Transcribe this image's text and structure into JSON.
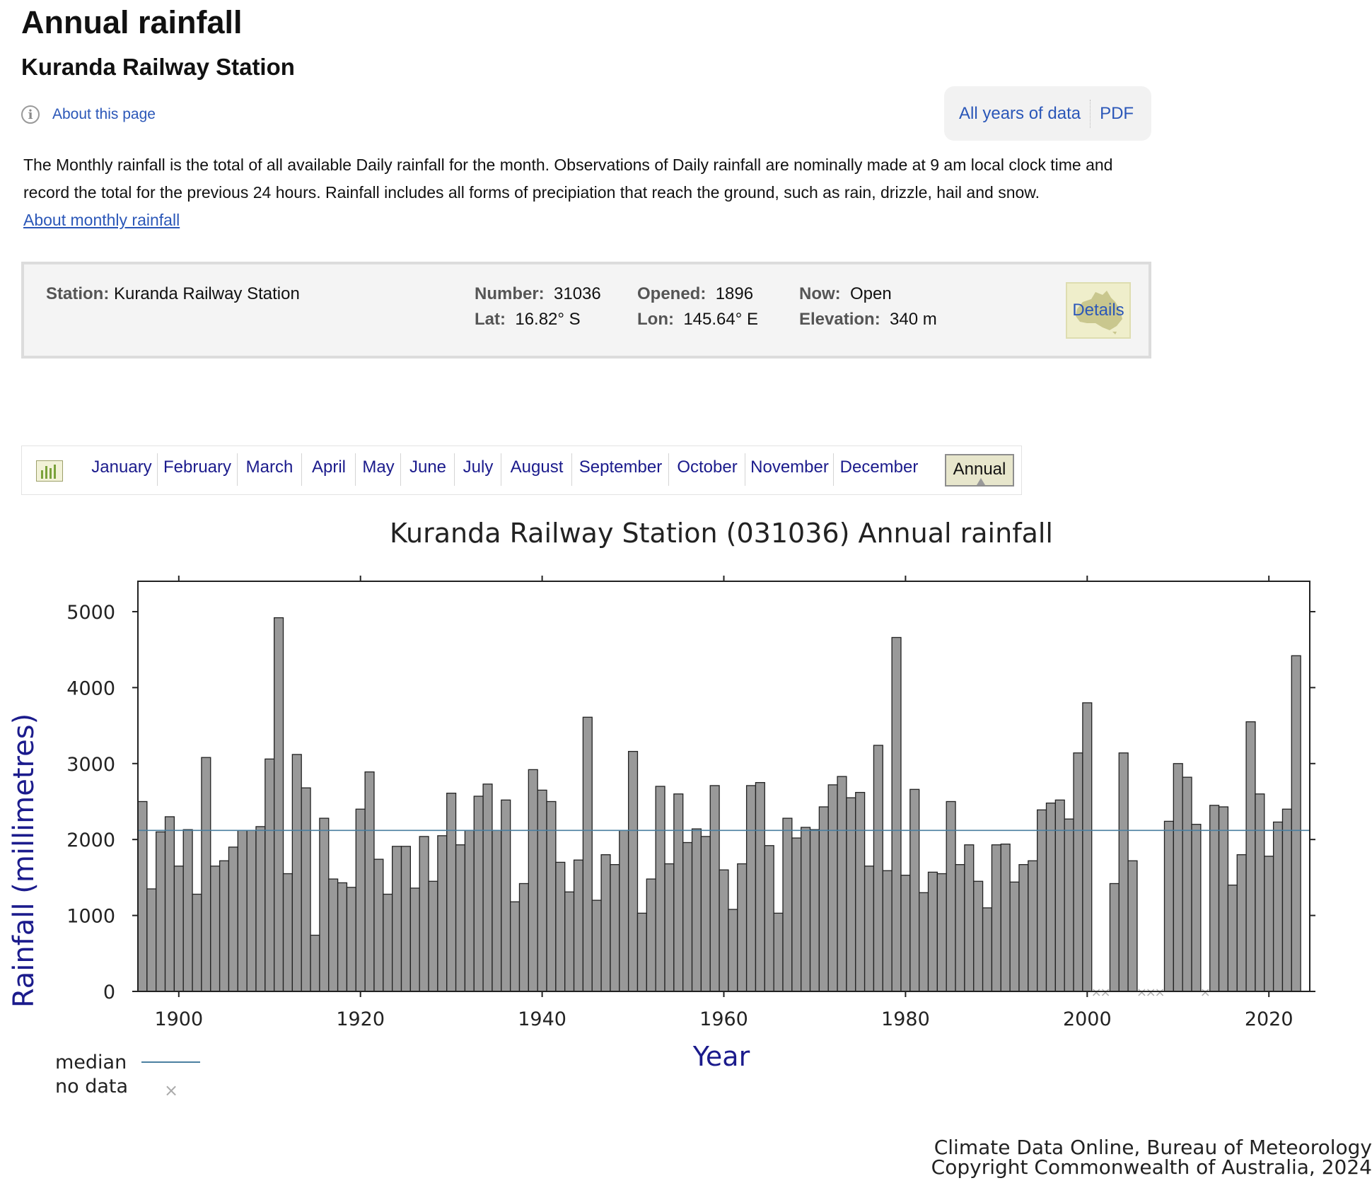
{
  "page": {
    "title": "Annual rainfall",
    "subtitle": "Kuranda Railway Station",
    "about_link": "About this page",
    "actions": [
      "All years of data",
      "PDF"
    ],
    "intro": "The Monthly rainfall is the total of all available Daily rainfall for the month. Observations of Daily rainfall are nominally made at 9 am local clock time and record the total for the previous 24 hours. Rainfall includes all forms of precipiation that reach the ground, such as rain, drizzle, hail and snow.",
    "intro_link": "About monthly rainfall"
  },
  "station": {
    "station_label": "Station:",
    "station_value": "Kuranda Railway Station",
    "number_label": "Number:",
    "number_value": "31036",
    "opened_label": "Opened:",
    "opened_value": "1896",
    "now_label": "Now:",
    "now_value": "Open",
    "lat_label": "Lat:",
    "lat_value": "16.82° S",
    "lon_label": "Lon:",
    "lon_value": "145.64° E",
    "elevation_label": "Elevation:",
    "elevation_value": "340 m",
    "details_button": "Details"
  },
  "tabs": {
    "months": [
      "January",
      "February",
      "March",
      "April",
      "May",
      "June",
      "July",
      "August",
      "September",
      "October",
      "November",
      "December"
    ],
    "selected": "Annual"
  },
  "chart_data": {
    "type": "bar",
    "title": "Kuranda Railway Station (031036) Annual rainfall",
    "xlabel": "Year",
    "ylabel": "Rainfall (millimetres)",
    "xlim": [
      1895.5,
      2024.5
    ],
    "ylim": [
      0,
      5400
    ],
    "x_ticks": [
      1900,
      1920,
      1940,
      1960,
      1980,
      2000,
      2020
    ],
    "y_ticks": [
      0,
      1000,
      2000,
      3000,
      4000,
      5000
    ],
    "median": 2120,
    "legend": {
      "median": "median",
      "no_data": "no data"
    },
    "bar_color": "#999999",
    "median_color": "#4a7fa0",
    "x": [
      1896,
      1897,
      1898,
      1899,
      1900,
      1901,
      1902,
      1903,
      1904,
      1905,
      1906,
      1907,
      1908,
      1909,
      1910,
      1911,
      1912,
      1913,
      1914,
      1915,
      1916,
      1917,
      1918,
      1919,
      1920,
      1921,
      1922,
      1923,
      1924,
      1925,
      1926,
      1927,
      1928,
      1929,
      1930,
      1931,
      1932,
      1933,
      1934,
      1935,
      1936,
      1937,
      1938,
      1939,
      1940,
      1941,
      1942,
      1943,
      1944,
      1945,
      1946,
      1947,
      1948,
      1949,
      1950,
      1951,
      1952,
      1953,
      1954,
      1955,
      1956,
      1957,
      1958,
      1959,
      1960,
      1961,
      1962,
      1963,
      1964,
      1965,
      1966,
      1967,
      1968,
      1969,
      1970,
      1971,
      1972,
      1973,
      1974,
      1975,
      1976,
      1977,
      1978,
      1979,
      1980,
      1981,
      1982,
      1983,
      1984,
      1985,
      1986,
      1987,
      1988,
      1989,
      1990,
      1991,
      1992,
      1993,
      1994,
      1995,
      1996,
      1997,
      1998,
      1999,
      2000,
      2003,
      2004,
      2005,
      2009,
      2010,
      2011,
      2012,
      2014,
      2015,
      2016,
      2017,
      2018,
      2019,
      2020,
      2021,
      2022,
      2023
    ],
    "values": [
      2500,
      1350,
      2100,
      2300,
      1650,
      2130,
      1280,
      3080,
      1650,
      1720,
      1900,
      2120,
      2120,
      2170,
      3060,
      4920,
      1550,
      3120,
      2680,
      740,
      2280,
      1480,
      1430,
      1370,
      2400,
      2890,
      1740,
      1280,
      1910,
      1910,
      1360,
      2040,
      1450,
      2050,
      2610,
      1930,
      2120,
      2570,
      2730,
      2120,
      2520,
      1180,
      1420,
      2920,
      2650,
      2500,
      1700,
      1310,
      1730,
      3610,
      1200,
      1800,
      1670,
      2120,
      3160,
      1030,
      1480,
      2700,
      1680,
      2600,
      1960,
      2140,
      2040,
      2710,
      1600,
      1080,
      1680,
      2710,
      2750,
      1920,
      1030,
      2280,
      2020,
      2160,
      2130,
      2430,
      2720,
      2830,
      2550,
      2620,
      1650,
      3240,
      1590,
      4660,
      1530,
      2660,
      1300,
      1570,
      1550,
      2500,
      1670,
      1930,
      1450,
      1100,
      1930,
      1940,
      1440,
      1670,
      1720,
      2390,
      2480,
      2520,
      2270,
      3140,
      3800,
      1420,
      3140,
      1720,
      2240,
      3000,
      2820,
      2200,
      2450,
      2430,
      1400,
      1800,
      3550,
      2600,
      1780,
      2230,
      2400,
      4420
    ],
    "no_data_years": [
      2001,
      2002,
      2006,
      2007,
      2008,
      2013
    ],
    "source": [
      "Climate Data Online, Bureau of Meteorology",
      "Copyright Commonwealth of Australia, 2024"
    ]
  }
}
